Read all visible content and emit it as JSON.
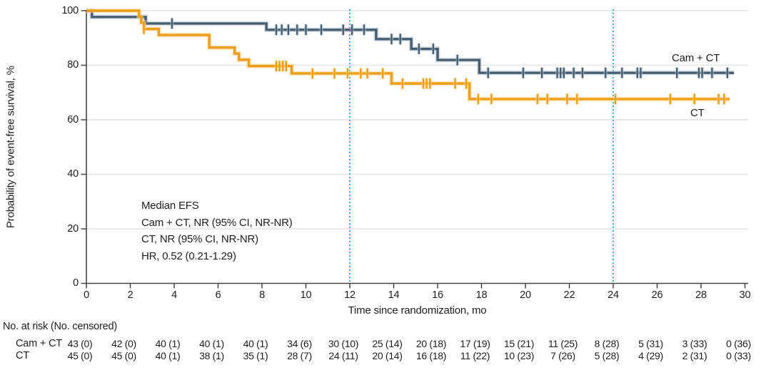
{
  "figure": {
    "curve_labels": {
      "cam_ct": "Cam + CT",
      "ct": "CT"
    }
  },
  "chart_data": {
    "type": "line",
    "subtype": "kaplan-meier-step-curves",
    "title": "",
    "xlabel": "Time since randomization, mo",
    "ylabel": "Probability of event-free survival, %",
    "xlim": [
      0,
      30
    ],
    "ylim": [
      0,
      100
    ],
    "xticks": [
      0,
      2,
      4,
      6,
      8,
      10,
      12,
      14,
      16,
      18,
      20,
      22,
      24,
      26,
      28,
      30
    ],
    "yticks": [
      0,
      20,
      40,
      60,
      80,
      100
    ],
    "grid": "horizontal",
    "grid_color": "#e9e9e9",
    "axis_color": "#444444",
    "reference_lines_x": [
      12,
      24
    ],
    "reference_line_color": "#35b4e4",
    "series": [
      {
        "name": "Cam + CT",
        "color": "#475d70",
        "halo_color": "#bac8d2",
        "steps": [
          [
            0,
            100
          ],
          [
            0.25,
            97.7
          ],
          [
            2.7,
            95.3
          ],
          [
            8.2,
            93.0
          ],
          [
            13.2,
            89.6
          ],
          [
            14.8,
            86.0
          ],
          [
            16.0,
            81.9
          ],
          [
            17.9,
            77.2
          ]
        ],
        "end_x": 29.5,
        "censor_marks": [
          [
            3.9,
            95.3
          ],
          [
            8.65,
            93.0
          ],
          [
            8.9,
            93.0
          ],
          [
            9.2,
            93.0
          ],
          [
            9.6,
            93.0
          ],
          [
            10.0,
            93.0
          ],
          [
            10.7,
            93.0
          ],
          [
            11.7,
            93.0
          ],
          [
            12.1,
            93.0
          ],
          [
            12.65,
            93.0
          ],
          [
            13.9,
            89.6
          ],
          [
            14.3,
            89.6
          ],
          [
            15.15,
            86.0
          ],
          [
            15.8,
            86.0
          ],
          [
            16.9,
            81.9
          ],
          [
            18.3,
            77.2
          ],
          [
            19.9,
            77.2
          ],
          [
            20.75,
            77.2
          ],
          [
            21.45,
            77.2
          ],
          [
            21.6,
            77.2
          ],
          [
            21.75,
            77.2
          ],
          [
            22.2,
            77.2
          ],
          [
            22.6,
            77.2
          ],
          [
            23.65,
            77.2
          ],
          [
            24.4,
            77.2
          ],
          [
            25.1,
            77.2
          ],
          [
            25.25,
            77.2
          ],
          [
            26.9,
            77.2
          ],
          [
            27.9,
            77.2
          ],
          [
            28.05,
            77.2
          ],
          [
            28.5,
            77.2
          ],
          [
            29.2,
            77.2
          ]
        ]
      },
      {
        "name": "CT",
        "color": "#ef9c17",
        "halo_color": "#f8d89c",
        "steps": [
          [
            0,
            100
          ],
          [
            2.4,
            97.8
          ],
          [
            2.5,
            95.6
          ],
          [
            2.62,
            93.3
          ],
          [
            3.3,
            91.1
          ],
          [
            5.6,
            86.5
          ],
          [
            6.75,
            84.3
          ],
          [
            6.95,
            82.0
          ],
          [
            7.4,
            79.7
          ],
          [
            9.35,
            77.0
          ],
          [
            13.9,
            73.3
          ],
          [
            17.45,
            67.6
          ]
        ],
        "end_x": 29.3,
        "censor_marks": [
          [
            2.62,
            93.3
          ],
          [
            8.65,
            79.7
          ],
          [
            8.8,
            79.7
          ],
          [
            8.95,
            79.7
          ],
          [
            9.1,
            79.7
          ],
          [
            10.3,
            77.0
          ],
          [
            11.3,
            77.0
          ],
          [
            11.9,
            77.0
          ],
          [
            12.5,
            77.0
          ],
          [
            12.8,
            77.0
          ],
          [
            13.5,
            77.0
          ],
          [
            14.4,
            73.3
          ],
          [
            15.35,
            73.3
          ],
          [
            15.5,
            73.3
          ],
          [
            15.65,
            73.3
          ],
          [
            16.8,
            73.3
          ],
          [
            17.3,
            73.3
          ],
          [
            17.85,
            67.6
          ],
          [
            18.45,
            67.6
          ],
          [
            20.55,
            67.6
          ],
          [
            21.0,
            67.6
          ],
          [
            21.9,
            67.6
          ],
          [
            22.35,
            67.6
          ],
          [
            24.1,
            67.6
          ],
          [
            26.6,
            67.6
          ],
          [
            27.7,
            67.6
          ],
          [
            28.8,
            67.6
          ],
          [
            29.05,
            67.6
          ]
        ]
      }
    ],
    "annotation": {
      "lines": [
        "Median EFS",
        "Cam + CT, NR (95% CI, NR-NR)",
        "CT, NR (95% CI, NR-NR)",
        "HR, 0.52 (0.21-1.29)"
      ]
    }
  },
  "risk_table": {
    "header": "No. at risk (No. censored)",
    "rows": [
      {
        "label": "Cam + CT",
        "values": [
          "43 (0)",
          "42 (0)",
          "40 (1)",
          "40 (1)",
          "40 (1)",
          "34 (6)",
          "30 (10)",
          "25 (14)",
          "20 (18)",
          "17 (19)",
          "15 (21)",
          "11 (25)",
          "8 (28)",
          "5 (31)",
          "3 (33)",
          "0 (36)"
        ]
      },
      {
        "label": "CT",
        "values": [
          "45 (0)",
          "45 (0)",
          "40 (1)",
          "38 (1)",
          "35 (1)",
          "28 (7)",
          "24 (11)",
          "20 (14)",
          "16 (18)",
          "11 (22)",
          "10 (23)",
          "7 (26)",
          "5 (28)",
          "4 (29)",
          "2 (31)",
          "0 (33)"
        ]
      }
    ]
  }
}
